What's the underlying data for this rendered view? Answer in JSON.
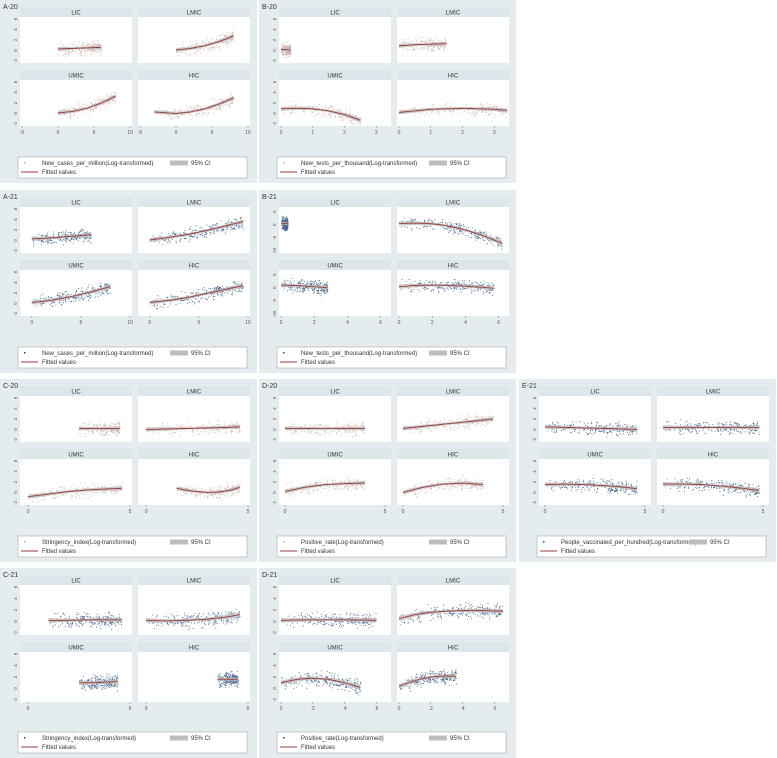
{
  "colors": {
    "panel_bg": "#e4ecf0",
    "plot_bg": "#ffffff",
    "strip_bg": "#dde6ea",
    "pink_points": "#c9a3a0",
    "navy_points": "#1f4a78",
    "fitted_line": "#9b3a3a",
    "ci_band": "#bdbdbd",
    "axis_text": "#555555"
  },
  "chart_data": [
    {
      "id": "A-20",
      "type": "scatter",
      "title": "A-20",
      "point_color": "pink",
      "facets": [
        "LIC",
        "LMIC",
        "UMIC",
        "HIC"
      ],
      "x_ticks": [
        "-5",
        "0",
        "5",
        "10"
      ],
      "xlim": [
        -5,
        10
      ],
      "y_ticks": [
        "-2",
        "0",
        "2",
        "4",
        "6"
      ],
      "ylim": [
        -2,
        6
      ],
      "legend": {
        "points": "New_cases_per_million(Log-transformed)",
        "ci": "95% CI",
        "line": "Fitted values"
      },
      "fits": {
        "LIC": {
          "x": [
            0,
            2,
            4,
            6
          ],
          "y": [
            0.3,
            0.4,
            0.5,
            0.6
          ]
        },
        "LMIC": {
          "x": [
            0,
            2,
            4,
            6,
            8
          ],
          "y": [
            0.1,
            0.4,
            0.9,
            1.7,
            2.8
          ]
        },
        "UMIC": {
          "x": [
            0,
            2,
            4,
            6,
            8
          ],
          "y": [
            0.1,
            0.4,
            1.0,
            2.0,
            3.3
          ]
        },
        "HIC": {
          "x": [
            -3,
            0,
            2,
            4,
            6,
            8
          ],
          "y": [
            0.3,
            0.0,
            0.3,
            0.9,
            1.8,
            3.0
          ]
        }
      }
    },
    {
      "id": "B-20",
      "type": "scatter",
      "title": "B-20",
      "point_color": "pink",
      "facets": [
        "LIC",
        "LMIC",
        "UMIC",
        "HIC"
      ],
      "x_ticks": [
        "0",
        "1",
        "2",
        "3"
      ],
      "xlim": [
        0,
        3.4
      ],
      "y_ticks": [
        "-2",
        "0",
        "2",
        "4",
        "6"
      ],
      "ylim": [
        -2,
        6
      ],
      "legend": {
        "points": "New_tests_per_thousand(Log-transformed)",
        "ci": "95% CI",
        "line": "Fitted values"
      },
      "fits": {
        "LIC": {
          "x": [
            0,
            0.3
          ],
          "y": [
            0.2,
            0.1
          ]
        },
        "LMIC": {
          "x": [
            0,
            0.5,
            1.0,
            1.5
          ],
          "y": [
            0.9,
            1.1,
            1.2,
            1.3
          ]
        },
        "UMIC": {
          "x": [
            0,
            0.5,
            1.0,
            1.5,
            2.0,
            2.5
          ],
          "y": [
            0.9,
            1.0,
            0.9,
            0.5,
            -0.2,
            -1.3
          ]
        },
        "HIC": {
          "x": [
            0,
            1,
            2,
            3,
            3.4
          ],
          "y": [
            0.2,
            0.8,
            1.0,
            0.8,
            0.6
          ]
        }
      }
    },
    {
      "id": "A-21",
      "type": "scatter",
      "title": "A-21",
      "point_color": "navy",
      "facets": [
        "LIC",
        "LMIC",
        "UMIC",
        "HIC"
      ],
      "x_ticks": [
        "0",
        "5",
        "10"
      ],
      "xlim": [
        -1,
        10
      ],
      "y_ticks": [
        "-2",
        "0",
        "2",
        "4",
        "6"
      ],
      "ylim": [
        -2,
        6
      ],
      "legend": {
        "points": "New_cases_per_million(Log-transformed)",
        "ci": "95% CI",
        "line": "Fitted values"
      },
      "fits": {
        "LIC": {
          "x": [
            0,
            2,
            4,
            6
          ],
          "y": [
            0.3,
            0.5,
            0.8,
            1.1
          ]
        },
        "LMIC": {
          "x": [
            0,
            2,
            4,
            6,
            8,
            9.5
          ],
          "y": [
            0.1,
            0.6,
            1.2,
            2.0,
            2.9,
            3.6
          ]
        },
        "UMIC": {
          "x": [
            0,
            2,
            4,
            6,
            8
          ],
          "y": [
            0.2,
            0.6,
            1.3,
            2.2,
            3.2
          ]
        },
        "HIC": {
          "x": [
            0,
            2,
            4,
            6,
            8,
            9.5
          ],
          "y": [
            0.2,
            0.6,
            1.2,
            2.0,
            2.8,
            3.4
          ]
        }
      }
    },
    {
      "id": "B-21",
      "type": "scatter",
      "title": "B-21",
      "point_color": "navy",
      "facets": [
        "LIC",
        "LMIC",
        "UMIC",
        "HIC"
      ],
      "x_ticks": [
        "0",
        "2",
        "4",
        "6"
      ],
      "xlim": [
        0,
        6.5
      ],
      "y_ticks": [
        "-10",
        "-5",
        "0",
        "5"
      ],
      "ylim": [
        -10,
        6
      ],
      "legend": {
        "points": "New_tests_per_thousand(Log-transformed)",
        "ci": "95% CI",
        "line": "Fitted values"
      },
      "fits": {
        "LIC": {
          "x": [
            0,
            0.4
          ],
          "y": [
            0.6,
            0.4
          ]
        },
        "LMIC": {
          "x": [
            0,
            1,
            2,
            3,
            4,
            5,
            6.2
          ],
          "y": [
            0.5,
            0.6,
            0.4,
            -0.5,
            -2.0,
            -4.0,
            -7.0
          ]
        },
        "UMIC": {
          "x": [
            0,
            1,
            2,
            2.8
          ],
          "y": [
            1.0,
            0.8,
            0.4,
            0.0
          ]
        },
        "HIC": {
          "x": [
            0,
            1,
            2,
            3,
            4,
            5,
            5.7
          ],
          "y": [
            0.4,
            0.9,
            1.0,
            0.9,
            0.6,
            0.2,
            -0.2
          ]
        }
      }
    },
    {
      "id": "C-20",
      "type": "scatter",
      "title": "C-20",
      "point_color": "pink",
      "facets": [
        "LIC",
        "LMIC",
        "UMIC",
        "HIC"
      ],
      "x_ticks": [
        "0",
        "5"
      ],
      "xlim": [
        -0.3,
        5
      ],
      "y_ticks": [
        "-2",
        "0",
        "2",
        "4",
        "6"
      ],
      "ylim": [
        -2,
        6
      ],
      "legend": {
        "points": "Stringency_index(Log-transformed)",
        "ci": "95% CI",
        "line": "Fitted values"
      },
      "fits": {
        "LIC": {
          "x": [
            2.5,
            3.5,
            4.5
          ],
          "y": [
            0.2,
            0.2,
            0.2
          ]
        },
        "LMIC": {
          "x": [
            0,
            1,
            2,
            3,
            4,
            4.6
          ],
          "y": [
            0.0,
            0.1,
            0.2,
            0.3,
            0.4,
            0.5
          ]
        },
        "UMIC": {
          "x": [
            0,
            1,
            2,
            3,
            4,
            4.6
          ],
          "y": [
            -0.8,
            -0.3,
            0.2,
            0.5,
            0.7,
            0.8
          ]
        },
        "HIC": {
          "x": [
            1.5,
            2.2,
            3.0,
            3.6,
            4.2,
            4.6
          ],
          "y": [
            0.8,
            0.3,
            0.0,
            0.1,
            0.5,
            1.0
          ]
        }
      }
    },
    {
      "id": "D-20",
      "type": "scatter",
      "title": "D-20",
      "point_color": "pink",
      "facets": [
        "LIC",
        "LMIC",
        "UMIC",
        "HIC"
      ],
      "x_ticks": [
        "0",
        "5"
      ],
      "xlim": [
        -0.2,
        5.2
      ],
      "y_ticks": [
        "-2",
        "0",
        "2",
        "4",
        "6"
      ],
      "ylim": [
        -2,
        6
      ],
      "legend": {
        "points": "Positive_rate(Log-transformed)",
        "ci": "95% CI",
        "line": "Fitted values"
      },
      "fits": {
        "LIC": {
          "x": [
            0,
            2,
            4
          ],
          "y": [
            0.2,
            0.2,
            0.2
          ]
        },
        "LMIC": {
          "x": [
            0,
            1,
            2,
            3,
            4.5
          ],
          "y": [
            0.2,
            0.6,
            1.0,
            1.4,
            2.0
          ]
        },
        "UMIC": {
          "x": [
            0,
            1,
            2,
            3,
            4
          ],
          "y": [
            0.2,
            1.0,
            1.5,
            1.7,
            1.8
          ]
        },
        "HIC": {
          "x": [
            0,
            1,
            2,
            3,
            4
          ],
          "y": [
            0.0,
            1.0,
            1.6,
            1.8,
            1.5
          ]
        }
      }
    },
    {
      "id": "E-21",
      "type": "scatter",
      "title": "E-21",
      "point_color": "navy",
      "facets": [
        "LIC",
        "LMIC",
        "UMIC",
        "HIC"
      ],
      "x_ticks": [
        "0",
        "5"
      ],
      "xlim": [
        -0.2,
        5.2
      ],
      "y_ticks": [
        "-2",
        "0",
        "2",
        "4",
        "6"
      ],
      "ylim": [
        -2,
        6
      ],
      "legend": {
        "points": "People_vaccinated_per_hundred(Log-transformed)",
        "ci": "95% CI",
        "line": "Fitted values"
      },
      "fits": {
        "LIC": {
          "x": [
            0,
            1,
            2,
            3,
            4,
            4.6
          ],
          "y": [
            0.5,
            0.4,
            0.3,
            0.2,
            0.1,
            0.0
          ]
        },
        "LMIC": {
          "x": [
            0,
            2,
            4,
            4.8
          ],
          "y": [
            0.4,
            0.4,
            0.4,
            0.4
          ]
        },
        "UMIC": {
          "x": [
            0,
            1,
            2,
            3,
            4,
            4.6
          ],
          "y": [
            1.5,
            1.6,
            1.5,
            1.3,
            1.0,
            0.7
          ]
        },
        "HIC": {
          "x": [
            0,
            1,
            2,
            3,
            4,
            4.8
          ],
          "y": [
            1.6,
            1.6,
            1.5,
            1.2,
            0.8,
            0.4
          ]
        }
      }
    },
    {
      "id": "C-21",
      "type": "scatter",
      "title": "C-21",
      "point_color": "navy",
      "facets": [
        "LIC",
        "LMIC",
        "UMIC",
        "HIC"
      ],
      "x_ticks": [
        "0",
        "5"
      ],
      "xlim": [
        -0.3,
        5
      ],
      "y_ticks": [
        "-2",
        "0",
        "2",
        "4",
        "6"
      ],
      "ylim": [
        -2,
        6
      ],
      "legend": {
        "points": "Stringency_index(Log-transformed)",
        "ci": "95% CI",
        "line": "Fitted values"
      },
      "fits": {
        "LIC": {
          "x": [
            1.0,
            2,
            3,
            4,
            4.6
          ],
          "y": [
            0.2,
            0.2,
            0.3,
            0.3,
            0.3
          ]
        },
        "LMIC": {
          "x": [
            0,
            1,
            2,
            3,
            4,
            4.6
          ],
          "y": [
            0.2,
            0.1,
            0.2,
            0.4,
            0.8,
            1.2
          ]
        },
        "UMIC": {
          "x": [
            2.5,
            3.2,
            3.8,
            4.4
          ],
          "y": [
            1.0,
            1.0,
            1.1,
            1.2
          ]
        },
        "HIC": {
          "x": [
            3.5,
            4.0,
            4.5
          ],
          "y": [
            1.6,
            1.6,
            1.6
          ]
        }
      }
    },
    {
      "id": "D-21",
      "type": "scatter",
      "title": "D-21",
      "point_color": "navy",
      "facets": [
        "LIC",
        "LMIC",
        "UMIC",
        "HIC"
      ],
      "x_ticks": [
        "0",
        ".2",
        ".4",
        ".6"
      ],
      "xlim": [
        0,
        0.68
      ],
      "y_ticks": [
        "-2",
        "0",
        "2",
        "4",
        "6"
      ],
      "ylim": [
        -2,
        6
      ],
      "legend": {
        "points": "Positive_rate(Log-transformed)",
        "ci": "95% CI",
        "line": "Fitted values"
      },
      "fits": {
        "LIC": {
          "x": [
            0,
            0.2,
            0.4,
            0.6
          ],
          "y": [
            0.2,
            0.3,
            0.3,
            0.2
          ]
        },
        "LMIC": {
          "x": [
            0,
            0.1,
            0.2,
            0.3,
            0.4,
            0.5,
            0.65
          ],
          "y": [
            0.5,
            1.2,
            1.6,
            1.8,
            1.9,
            1.9,
            1.8
          ]
        },
        "UMIC": {
          "x": [
            0,
            0.1,
            0.2,
            0.3,
            0.4,
            0.5
          ],
          "y": [
            1.0,
            1.6,
            1.8,
            1.6,
            1.0,
            0.2
          ]
        },
        "HIC": {
          "x": [
            0,
            0.1,
            0.2,
            0.3,
            0.36
          ],
          "y": [
            0.4,
            1.4,
            2.0,
            2.2,
            2.1
          ]
        }
      }
    }
  ]
}
